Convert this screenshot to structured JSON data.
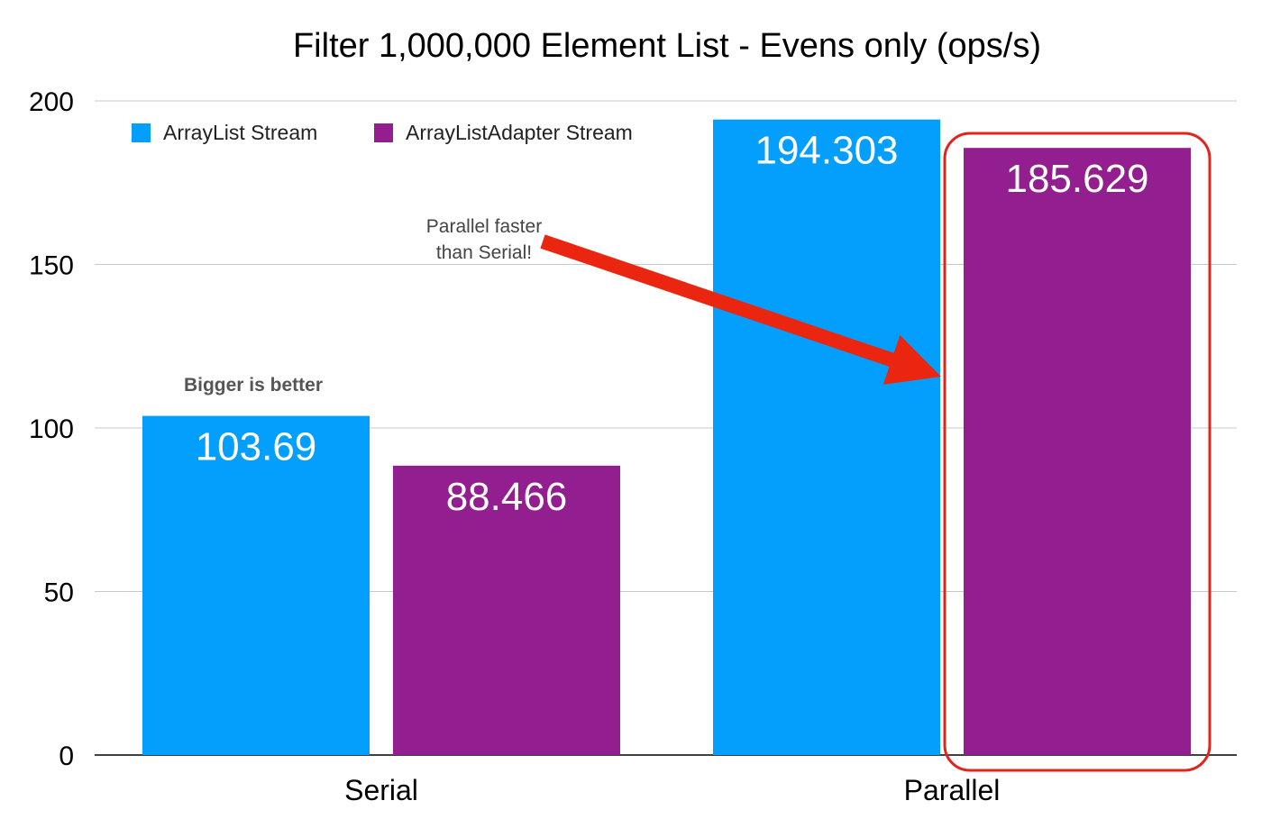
{
  "chart_data": {
    "type": "bar",
    "title": "Filter 1,000,000 Element List - Evens only (ops/s)",
    "categories": [
      "Serial",
      "Parallel"
    ],
    "series": [
      {
        "name": "ArrayList Stream",
        "color": "#049ffc",
        "values": [
          103.69,
          194.303
        ],
        "labels": [
          "103.69",
          "194.303"
        ]
      },
      {
        "name": "ArrayListAdapter Stream",
        "color": "#921e8f",
        "values": [
          88.466,
          185.629
        ],
        "labels": [
          "88.466",
          "185.629"
        ]
      }
    ],
    "ylim": [
      0,
      200
    ],
    "yticks": [
      0,
      50,
      100,
      150,
      200
    ],
    "grid": true,
    "legend_position": "top-left",
    "annotations": {
      "bigger_is_better": "Bigger is better",
      "parallel_note_line1": "Parallel faster",
      "parallel_note_line2": "than Serial!"
    },
    "highlight": {
      "category": "Parallel",
      "series": "ArrayListAdapter Stream",
      "color": "#e0261c"
    },
    "arrow_color": "#ea2510"
  }
}
